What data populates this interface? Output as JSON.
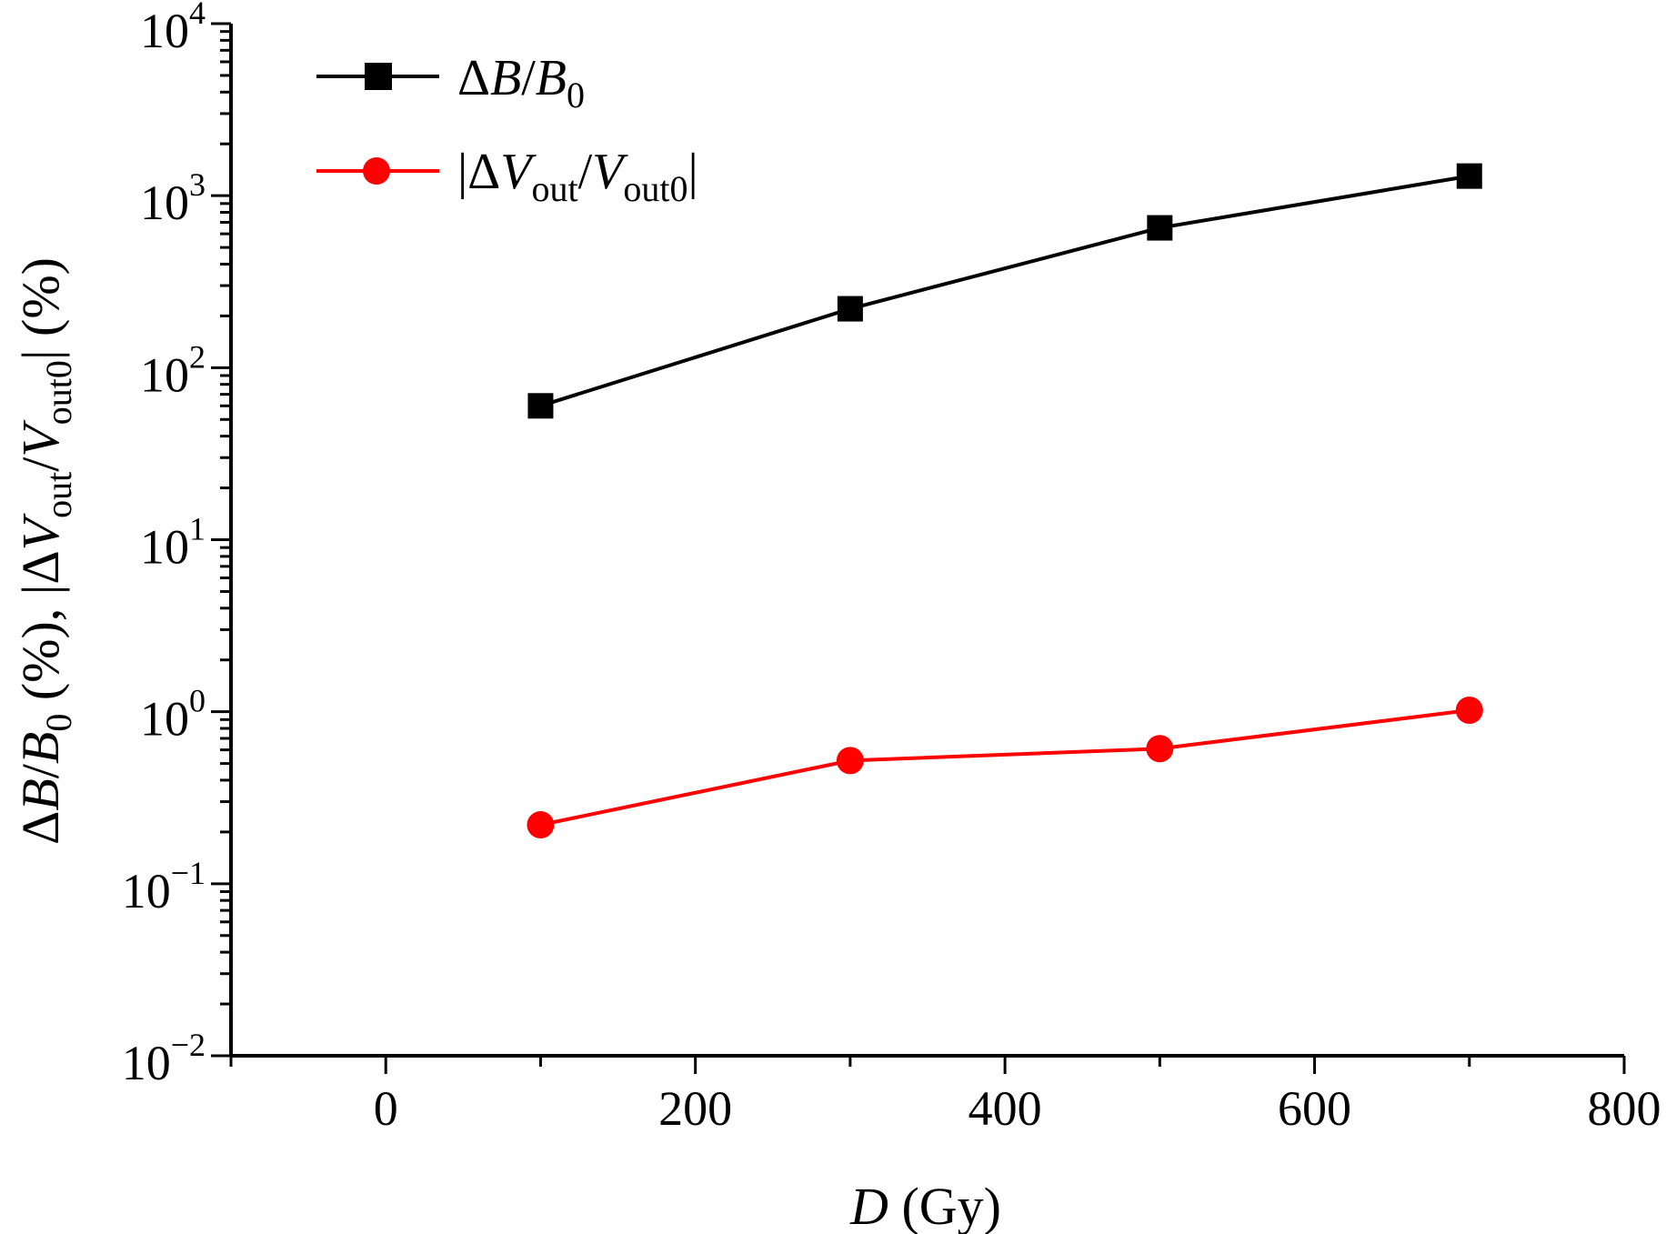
{
  "chart_data": {
    "type": "line",
    "yscale": "log",
    "xlim": [
      -100,
      800
    ],
    "ylim": [
      0.01,
      10000
    ],
    "x_ticks": [
      0,
      200,
      400,
      600,
      800
    ],
    "x_tick_labels": [
      "0",
      "200",
      "400",
      "600",
      "800"
    ],
    "y_ticks": [
      0.01,
      0.1,
      1,
      10,
      100,
      1000,
      10000
    ],
    "y_tick_labels": [
      {
        "base": "10",
        "exp": "−2"
      },
      {
        "base": "10",
        "exp": "−1"
      },
      {
        "base": "10",
        "exp": "0"
      },
      {
        "base": "10",
        "exp": "1"
      },
      {
        "base": "10",
        "exp": "2"
      },
      {
        "base": "10",
        "exp": "3"
      },
      {
        "base": "10",
        "exp": "4"
      }
    ],
    "xlabel": {
      "var": "D",
      "rest": " (Gy)"
    },
    "ylabel": "ΔB/B0 (%), |ΔVout/Vout0| (%)",
    "legend_position": "top-left",
    "grid": false,
    "series": [
      {
        "name": "ΔB/B0",
        "color": "#000000",
        "marker": "square",
        "x": [
          100,
          300,
          500,
          700
        ],
        "y": [
          60,
          220,
          650,
          1300
        ]
      },
      {
        "name": "|ΔVout/Vout0|",
        "color": "#ff0000",
        "marker": "circle",
        "x": [
          100,
          300,
          500,
          700
        ],
        "y": [
          0.22,
          0.52,
          0.61,
          1.02
        ]
      }
    ]
  }
}
